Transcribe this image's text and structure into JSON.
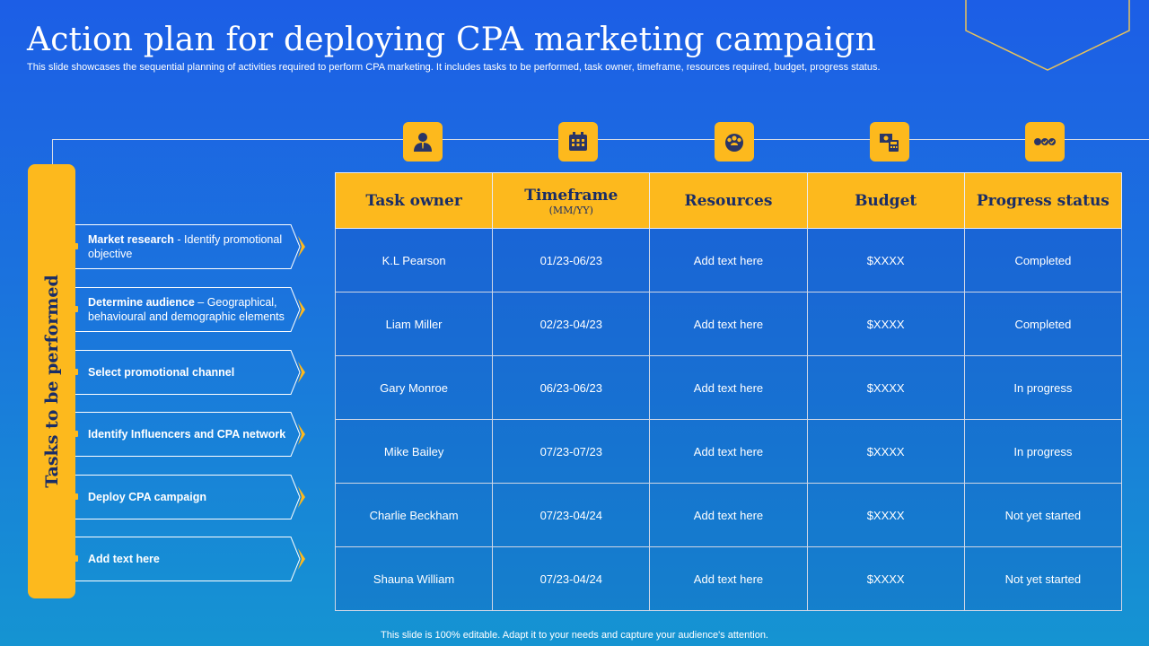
{
  "slide": {
    "title": "Action plan for deploying CPA marketing campaign",
    "subtitle": "This slide showcases the sequential planning of activities required to perform CPA marketing. It includes tasks to be performed, task owner, timeframe, resources required, budget, progress status.",
    "side_label": "Tasks to be performed",
    "footer": "This slide is 100% editable. Adapt it to your needs and capture your audience's attention."
  },
  "icons": [
    "person-icon",
    "calendar-icon",
    "team-globe-icon",
    "money-calculator-icon",
    "more-options-icon"
  ],
  "colors": {
    "accent": "#fdb91d",
    "background_top": "#1c5ee6",
    "background_bottom": "#1594d2",
    "header_text": "#1a2d66"
  },
  "tasks": [
    {
      "bold": "Market research",
      "rest": " - Identify promotional objective"
    },
    {
      "bold": "Determine audience",
      "rest": " – Geographical, behavioural and demographic elements"
    },
    {
      "bold": "Select promotional channel",
      "rest": ""
    },
    {
      "bold": "Identify Influencers and CPA network",
      "rest": ""
    },
    {
      "bold": "Deploy CPA campaign",
      "rest": ""
    },
    {
      "bold": "Add text here",
      "rest": ""
    }
  ],
  "table": {
    "headers": [
      {
        "label": "Task owner",
        "sub": ""
      },
      {
        "label": "Timeframe",
        "sub": "(MM/YY)"
      },
      {
        "label": "Resources",
        "sub": ""
      },
      {
        "label": "Budget",
        "sub": ""
      },
      {
        "label": "Progress status",
        "sub": ""
      }
    ],
    "rows": [
      [
        "K.L Pearson",
        "01/23-06/23",
        "Add text here",
        "$XXXX",
        "Completed"
      ],
      [
        "Liam Miller",
        "02/23-04/23",
        "Add text here",
        "$XXXX",
        "Completed"
      ],
      [
        "Gary Monroe",
        "06/23-06/23",
        "Add text here",
        "$XXXX",
        "In progress"
      ],
      [
        "Mike Bailey",
        "07/23-07/23",
        "Add text here",
        "$XXXX",
        "In progress"
      ],
      [
        "Charlie Beckham",
        "07/23-04/24",
        "Add text here",
        "$XXXX",
        "Not yet started"
      ],
      [
        "Shauna William",
        "07/23-04/24",
        "Add text here",
        "$XXXX",
        "Not yet started"
      ]
    ]
  }
}
